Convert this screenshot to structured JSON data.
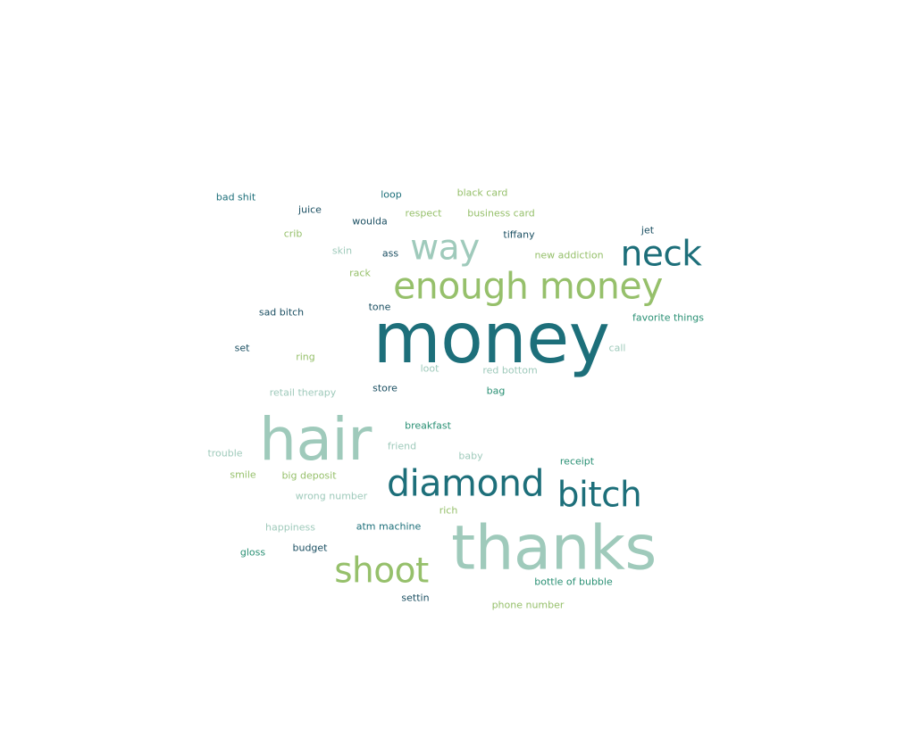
{
  "chart_data": {
    "type": "wordcloud",
    "palette": {
      "dark_teal": "#1d6f7a",
      "navy": "#1b4f62",
      "mid_teal": "#2a9074",
      "sage": "#9fcabb",
      "lime": "#96c06b"
    },
    "words": [
      {
        "text": "money",
        "weight": 100,
        "color": "#1d6f7a"
      },
      {
        "text": "thanks",
        "weight": 88,
        "color": "#9fcabb"
      },
      {
        "text": "hair",
        "weight": 84,
        "color": "#9fcabb"
      },
      {
        "text": "enough money",
        "weight": 52,
        "color": "#96c06b"
      },
      {
        "text": "diamond",
        "weight": 52,
        "color": "#1d6f7a"
      },
      {
        "text": "way",
        "weight": 50,
        "color": "#9fcabb"
      },
      {
        "text": "neck",
        "weight": 50,
        "color": "#1d6f7a"
      },
      {
        "text": "bitch",
        "weight": 50,
        "color": "#1d6f7a"
      },
      {
        "text": "shoot",
        "weight": 50,
        "color": "#96c06b"
      },
      {
        "text": "bad shit",
        "weight": 12,
        "color": "#1d6f7a"
      },
      {
        "text": "loop",
        "weight": 12,
        "color": "#1d6f7a"
      },
      {
        "text": "black card",
        "weight": 12,
        "color": "#96c06b"
      },
      {
        "text": "juice",
        "weight": 12,
        "color": "#1b4f62"
      },
      {
        "text": "woulda",
        "weight": 12,
        "color": "#1b4f62"
      },
      {
        "text": "respect",
        "weight": 12,
        "color": "#96c06b"
      },
      {
        "text": "business card",
        "weight": 12,
        "color": "#96c06b"
      },
      {
        "text": "crib",
        "weight": 12,
        "color": "#96c06b"
      },
      {
        "text": "tiffany",
        "weight": 12,
        "color": "#1b4f62"
      },
      {
        "text": "jet",
        "weight": 12,
        "color": "#1b4f62"
      },
      {
        "text": "skin",
        "weight": 12,
        "color": "#9fcabb"
      },
      {
        "text": "ass",
        "weight": 12,
        "color": "#1b4f62"
      },
      {
        "text": "new addiction",
        "weight": 12,
        "color": "#96c06b"
      },
      {
        "text": "rack",
        "weight": 12,
        "color": "#96c06b"
      },
      {
        "text": "sad bitch",
        "weight": 12,
        "color": "#1b4f62"
      },
      {
        "text": "tone",
        "weight": 12,
        "color": "#1b4f62"
      },
      {
        "text": "favorite things",
        "weight": 12,
        "color": "#2a9074"
      },
      {
        "text": "set",
        "weight": 12,
        "color": "#1b4f62"
      },
      {
        "text": "call",
        "weight": 12,
        "color": "#9fcabb"
      },
      {
        "text": "ring",
        "weight": 12,
        "color": "#96c06b"
      },
      {
        "text": "loot",
        "weight": 12,
        "color": "#9fcabb"
      },
      {
        "text": "red bottom",
        "weight": 12,
        "color": "#9fcabb"
      },
      {
        "text": "retail therapy",
        "weight": 12,
        "color": "#9fcabb"
      },
      {
        "text": "store",
        "weight": 12,
        "color": "#1b4f62"
      },
      {
        "text": "bag",
        "weight": 12,
        "color": "#2a9074"
      },
      {
        "text": "breakfast",
        "weight": 12,
        "color": "#2a9074"
      },
      {
        "text": "friend",
        "weight": 12,
        "color": "#9fcabb"
      },
      {
        "text": "trouble",
        "weight": 12,
        "color": "#9fcabb"
      },
      {
        "text": "baby",
        "weight": 12,
        "color": "#9fcabb"
      },
      {
        "text": "receipt",
        "weight": 12,
        "color": "#2a9074"
      },
      {
        "text": "smile",
        "weight": 12,
        "color": "#96c06b"
      },
      {
        "text": "big deposit",
        "weight": 12,
        "color": "#96c06b"
      },
      {
        "text": "wrong number",
        "weight": 12,
        "color": "#9fcabb"
      },
      {
        "text": "rich",
        "weight": 12,
        "color": "#96c06b"
      },
      {
        "text": "happiness",
        "weight": 12,
        "color": "#9fcabb"
      },
      {
        "text": "atm machine",
        "weight": 12,
        "color": "#1d6f7a"
      },
      {
        "text": "gloss",
        "weight": 12,
        "color": "#2a9074"
      },
      {
        "text": "budget",
        "weight": 12,
        "color": "#1b4f62"
      },
      {
        "text": "bottle of bubble",
        "weight": 12,
        "color": "#2a9074"
      },
      {
        "text": "settin",
        "weight": 12,
        "color": "#1b4f62"
      },
      {
        "text": "phone number",
        "weight": 12,
        "color": "#96c06b"
      }
    ]
  }
}
